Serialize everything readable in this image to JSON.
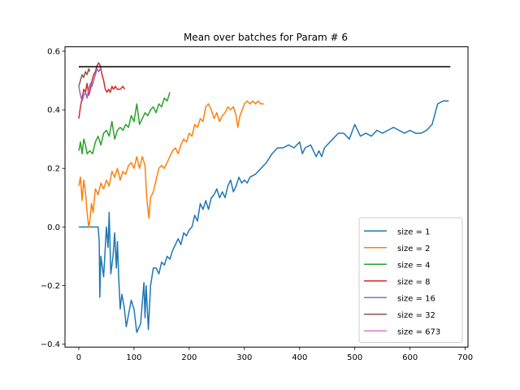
{
  "chart_data": {
    "type": "line",
    "title": "Mean over batches for Param # 6",
    "xlabel": "",
    "ylabel": "",
    "xlim": [
      -25,
      705
    ],
    "ylim": [
      -0.41,
      0.615
    ],
    "xticks": [
      0,
      100,
      200,
      300,
      400,
      500,
      600,
      700
    ],
    "yticks": [
      -0.4,
      -0.2,
      0.0,
      0.2,
      0.4,
      0.6
    ],
    "xtick_labels": [
      "0",
      "100",
      "200",
      "300",
      "400",
      "500",
      "600",
      "700"
    ],
    "ytick_labels": [
      "−0.4",
      "−0.2",
      "0.0",
      "0.2",
      "0.4",
      "0.6"
    ],
    "grid": false,
    "legend_position": "lower-right",
    "series": [
      {
        "name": "size = 1",
        "color": "#1f77b4",
        "points": [
          [
            0,
            0.0
          ],
          [
            35,
            0.0
          ],
          [
            37,
            -0.05
          ],
          [
            38,
            -0.24
          ],
          [
            40,
            -0.1
          ],
          [
            45,
            -0.17
          ],
          [
            50,
            0.0
          ],
          [
            53,
            -0.07
          ],
          [
            55,
            0.05
          ],
          [
            58,
            -0.16
          ],
          [
            62,
            -0.1
          ],
          [
            65,
            -0.02
          ],
          [
            68,
            -0.14
          ],
          [
            70,
            -0.05
          ],
          [
            72,
            -0.16
          ],
          [
            75,
            -0.28
          ],
          [
            78,
            -0.23
          ],
          [
            82,
            -0.27
          ],
          [
            86,
            -0.34
          ],
          [
            90,
            -0.3
          ],
          [
            95,
            -0.25
          ],
          [
            100,
            -0.28
          ],
          [
            105,
            -0.36
          ],
          [
            112,
            -0.33
          ],
          [
            118,
            -0.19
          ],
          [
            120,
            -0.31
          ],
          [
            122,
            -0.2
          ],
          [
            126,
            -0.35
          ],
          [
            130,
            -0.2
          ],
          [
            135,
            -0.14
          ],
          [
            140,
            -0.14
          ],
          [
            145,
            -0.16
          ],
          [
            150,
            -0.12
          ],
          [
            155,
            -0.13
          ],
          [
            160,
            -0.1
          ],
          [
            165,
            -0.11
          ],
          [
            170,
            -0.08
          ],
          [
            175,
            -0.06
          ],
          [
            180,
            -0.04
          ],
          [
            185,
            -0.06
          ],
          [
            190,
            -0.02
          ],
          [
            195,
            -0.03
          ],
          [
            200,
            -0.01
          ],
          [
            205,
            0.0
          ],
          [
            210,
            0.04
          ],
          [
            215,
            0.02
          ],
          [
            220,
            0.08
          ],
          [
            225,
            0.06
          ],
          [
            230,
            0.09
          ],
          [
            235,
            0.06
          ],
          [
            240,
            0.1
          ],
          [
            245,
            0.11
          ],
          [
            250,
            0.13
          ],
          [
            255,
            0.1
          ],
          [
            260,
            0.12
          ],
          [
            265,
            0.1
          ],
          [
            270,
            0.14
          ],
          [
            275,
            0.16
          ],
          [
            280,
            0.12
          ],
          [
            285,
            0.14
          ],
          [
            290,
            0.17
          ],
          [
            295,
            0.15
          ],
          [
            300,
            0.16
          ],
          [
            305,
            0.15
          ],
          [
            310,
            0.17
          ],
          [
            320,
            0.18
          ],
          [
            330,
            0.2
          ],
          [
            340,
            0.22
          ],
          [
            350,
            0.25
          ],
          [
            360,
            0.27
          ],
          [
            370,
            0.27
          ],
          [
            380,
            0.28
          ],
          [
            390,
            0.27
          ],
          [
            400,
            0.29
          ],
          [
            405,
            0.25
          ],
          [
            410,
            0.27
          ],
          [
            420,
            0.28
          ],
          [
            430,
            0.24
          ],
          [
            435,
            0.26
          ],
          [
            440,
            0.24
          ],
          [
            445,
            0.27
          ],
          [
            450,
            0.28
          ],
          [
            460,
            0.3
          ],
          [
            470,
            0.32
          ],
          [
            480,
            0.32
          ],
          [
            490,
            0.3
          ],
          [
            500,
            0.35
          ],
          [
            510,
            0.31
          ],
          [
            520,
            0.32
          ],
          [
            530,
            0.31
          ],
          [
            540,
            0.33
          ],
          [
            550,
            0.32
          ],
          [
            560,
            0.33
          ],
          [
            570,
            0.34
          ],
          [
            580,
            0.33
          ],
          [
            590,
            0.32
          ],
          [
            600,
            0.33
          ],
          [
            610,
            0.32
          ],
          [
            620,
            0.32
          ],
          [
            630,
            0.33
          ],
          [
            640,
            0.35
          ],
          [
            650,
            0.42
          ],
          [
            660,
            0.43
          ],
          [
            670,
            0.43
          ]
        ]
      },
      {
        "name": "size = 2",
        "color": "#ff7f0e",
        "points": [
          [
            0,
            0.14
          ],
          [
            3,
            0.17
          ],
          [
            6,
            0.09
          ],
          [
            9,
            0.16
          ],
          [
            12,
            0.12
          ],
          [
            15,
            0.05
          ],
          [
            18,
            0.0
          ],
          [
            20,
            0.02
          ],
          [
            23,
            0.08
          ],
          [
            26,
            0.05
          ],
          [
            30,
            0.13
          ],
          [
            35,
            0.11
          ],
          [
            40,
            0.15
          ],
          [
            45,
            0.13
          ],
          [
            50,
            0.16
          ],
          [
            55,
            0.14
          ],
          [
            60,
            0.19
          ],
          [
            65,
            0.17
          ],
          [
            70,
            0.2
          ],
          [
            75,
            0.16
          ],
          [
            80,
            0.19
          ],
          [
            85,
            0.18
          ],
          [
            90,
            0.21
          ],
          [
            95,
            0.22
          ],
          [
            100,
            0.2
          ],
          [
            105,
            0.24
          ],
          [
            110,
            0.2
          ],
          [
            115,
            0.24
          ],
          [
            120,
            0.21
          ],
          [
            123,
            0.1
          ],
          [
            127,
            0.03
          ],
          [
            130,
            0.1
          ],
          [
            135,
            0.12
          ],
          [
            140,
            0.16
          ],
          [
            145,
            0.2
          ],
          [
            150,
            0.21
          ],
          [
            155,
            0.2
          ],
          [
            160,
            0.22
          ],
          [
            165,
            0.24
          ],
          [
            170,
            0.26
          ],
          [
            175,
            0.27
          ],
          [
            180,
            0.25
          ],
          [
            185,
            0.28
          ],
          [
            190,
            0.3
          ],
          [
            195,
            0.29
          ],
          [
            200,
            0.32
          ],
          [
            205,
            0.31
          ],
          [
            210,
            0.35
          ],
          [
            215,
            0.34
          ],
          [
            220,
            0.37
          ],
          [
            225,
            0.36
          ],
          [
            230,
            0.41
          ],
          [
            235,
            0.42
          ],
          [
            240,
            0.4
          ],
          [
            245,
            0.37
          ],
          [
            250,
            0.39
          ],
          [
            255,
            0.36
          ],
          [
            260,
            0.38
          ],
          [
            265,
            0.39
          ],
          [
            270,
            0.41
          ],
          [
            275,
            0.4
          ],
          [
            280,
            0.41
          ],
          [
            285,
            0.38
          ],
          [
            288,
            0.34
          ],
          [
            292,
            0.38
          ],
          [
            296,
            0.4
          ],
          [
            300,
            0.42
          ],
          [
            305,
            0.43
          ],
          [
            310,
            0.42
          ],
          [
            315,
            0.43
          ],
          [
            320,
            0.42
          ],
          [
            325,
            0.43
          ],
          [
            330,
            0.42
          ],
          [
            335,
            0.42
          ]
        ]
      },
      {
        "name": "size = 4",
        "color": "#2ca02c",
        "points": [
          [
            0,
            0.26
          ],
          [
            3,
            0.29
          ],
          [
            6,
            0.25
          ],
          [
            9,
            0.3
          ],
          [
            12,
            0.28
          ],
          [
            15,
            0.25
          ],
          [
            20,
            0.26
          ],
          [
            25,
            0.25
          ],
          [
            30,
            0.29
          ],
          [
            35,
            0.31
          ],
          [
            40,
            0.28
          ],
          [
            45,
            0.32
          ],
          [
            50,
            0.33
          ],
          [
            55,
            0.31
          ],
          [
            60,
            0.36
          ],
          [
            65,
            0.3
          ],
          [
            70,
            0.33
          ],
          [
            75,
            0.34
          ],
          [
            80,
            0.33
          ],
          [
            85,
            0.35
          ],
          [
            90,
            0.34
          ],
          [
            95,
            0.38
          ],
          [
            100,
            0.36
          ],
          [
            105,
            0.42
          ],
          [
            110,
            0.35
          ],
          [
            115,
            0.37
          ],
          [
            120,
            0.39
          ],
          [
            125,
            0.38
          ],
          [
            130,
            0.4
          ],
          [
            135,
            0.41
          ],
          [
            140,
            0.39
          ],
          [
            145,
            0.42
          ],
          [
            150,
            0.41
          ],
          [
            155,
            0.44
          ],
          [
            160,
            0.43
          ],
          [
            165,
            0.46
          ]
        ]
      },
      {
        "name": "size = 8",
        "color": "#d62728",
        "points": [
          [
            0,
            0.37
          ],
          [
            3,
            0.41
          ],
          [
            6,
            0.44
          ],
          [
            9,
            0.47
          ],
          [
            12,
            0.46
          ],
          [
            15,
            0.49
          ],
          [
            18,
            0.45
          ],
          [
            21,
            0.47
          ],
          [
            24,
            0.5
          ],
          [
            27,
            0.52
          ],
          [
            30,
            0.53
          ],
          [
            33,
            0.55
          ],
          [
            36,
            0.56
          ],
          [
            39,
            0.55
          ],
          [
            42,
            0.52
          ],
          [
            45,
            0.5
          ],
          [
            48,
            0.47
          ],
          [
            51,
            0.46
          ],
          [
            54,
            0.47
          ],
          [
            57,
            0.46
          ],
          [
            60,
            0.48
          ],
          [
            63,
            0.47
          ],
          [
            66,
            0.48
          ],
          [
            70,
            0.47
          ],
          [
            75,
            0.47
          ],
          [
            80,
            0.48
          ],
          [
            83,
            0.47
          ]
        ]
      },
      {
        "name": "size = 16",
        "color": "#9467bd",
        "points": [
          [
            0,
            0.48
          ],
          [
            3,
            0.45
          ],
          [
            6,
            0.43
          ],
          [
            9,
            0.45
          ],
          [
            12,
            0.46
          ],
          [
            15,
            0.44
          ],
          [
            18,
            0.47
          ],
          [
            21,
            0.49
          ],
          [
            24,
            0.48
          ],
          [
            27,
            0.5
          ],
          [
            30,
            0.52
          ],
          [
            33,
            0.54
          ],
          [
            36,
            0.53
          ],
          [
            39,
            0.54
          ],
          [
            41,
            0.53
          ]
        ]
      },
      {
        "name": "size = 32",
        "color": "#8c564b",
        "points": [
          [
            0,
            0.48
          ],
          [
            3,
            0.5
          ],
          [
            6,
            0.52
          ],
          [
            9,
            0.51
          ],
          [
            12,
            0.53
          ],
          [
            15,
            0.52
          ],
          [
            18,
            0.54
          ],
          [
            20,
            0.53
          ]
        ]
      },
      {
        "name": "size = 673",
        "color": "#e377c2",
        "points": [
          [
            0,
            0.545
          ],
          [
            1,
            0.545
          ]
        ]
      },
      {
        "name": "",
        "color": "#000000",
        "points": [
          [
            0,
            0.547
          ],
          [
            673,
            0.547
          ]
        ]
      }
    ]
  }
}
